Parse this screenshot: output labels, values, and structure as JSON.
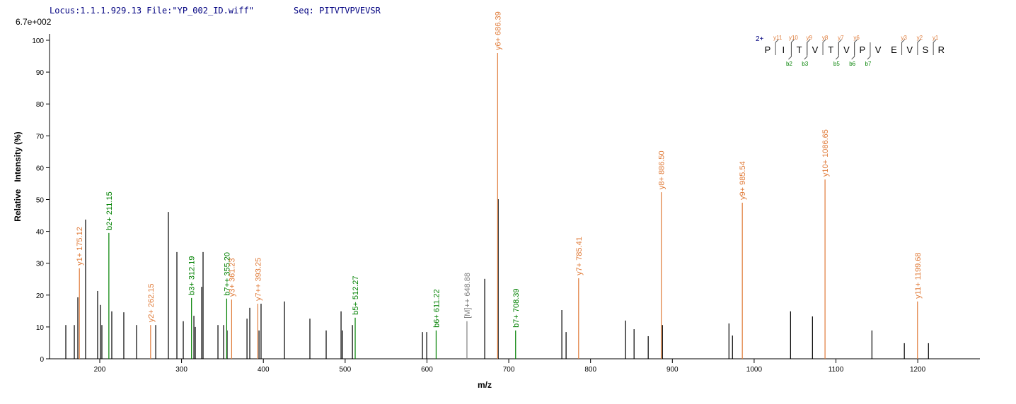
{
  "chart_data": {
    "type": "spectrum",
    "header": [
      "Locus:1.1.1.929.13 File:\"YP_002_ID.wiff\"",
      "Seq: PITVTVPVEVSR"
    ],
    "scale_label": "6.7e+002",
    "x_label": "m/z",
    "y_label": "Relative   Intensity (%)",
    "xlim": [
      138.6,
      1276
    ],
    "ylim": [
      0,
      100
    ],
    "xticks": [
      200,
      300,
      400,
      500,
      600,
      700,
      800,
      900,
      1000,
      1100,
      1200
    ],
    "yticks": [
      0,
      10,
      20,
      30,
      40,
      50,
      60,
      70,
      80,
      90,
      100
    ],
    "x": [
      158.5,
      168.9,
      173.2,
      182.7,
      197.4,
      200.9,
      202.6,
      214.7,
      229.4,
      245.0,
      268.4,
      283.9,
      294.3,
      302.1,
      315.1,
      316.8,
      324.6,
      326.3,
      344.5,
      351.4,
      355.7,
      380.0,
      383.4,
      394.7,
      397.2,
      425.8,
      456.9,
      476.8,
      495.0,
      496.7,
      508.9,
      594.5,
      599.7,
      670.6,
      687.1,
      764.9,
      770.1,
      842.8,
      853.2,
      870.5,
      887.9,
      969.2,
      973.5,
      1044.5,
      1071.3,
      1144.0,
      1183.6,
      1213.1,
      175.12,
      211.15,
      262.15,
      312.19,
      355.2,
      361.23,
      393.25,
      512.27,
      611.22,
      648.88,
      686.39,
      708.39,
      785.41,
      886.5,
      985.54,
      1086.65,
      1199.68
    ],
    "values": [
      10.6,
      10.6,
      19.3,
      43.7,
      21.3,
      16.9,
      10.6,
      14.9,
      14.6,
      10.6,
      10.6,
      46.1,
      33.5,
      11.8,
      13.5,
      10.0,
      22.6,
      33.5,
      10.6,
      10.6,
      8.9,
      12.6,
      16.0,
      8.9,
      17.3,
      18.0,
      12.6,
      8.9,
      14.9,
      8.9,
      10.6,
      8.4,
      8.4,
      25.1,
      50.1,
      15.3,
      8.4,
      12.0,
      9.3,
      7.1,
      10.6,
      11.1,
      7.3,
      14.9,
      13.3,
      8.9,
      4.9,
      4.9,
      28.4,
      39.5,
      10.6,
      19.1,
      18.9,
      18.6,
      17.3,
      12.9,
      8.9,
      11.8,
      96.0,
      8.9,
      25.3,
      52.3,
      49.0,
      56.3,
      18.0
    ],
    "colors": [
      "#000000",
      "#000000",
      "#000000",
      "#000000",
      "#000000",
      "#000000",
      "#000000",
      "#000000",
      "#000000",
      "#000000",
      "#000000",
      "#000000",
      "#000000",
      "#000000",
      "#000000",
      "#000000",
      "#000000",
      "#000000",
      "#000000",
      "#000000",
      "#000000",
      "#000000",
      "#000000",
      "#000000",
      "#000000",
      "#000000",
      "#000000",
      "#000000",
      "#000000",
      "#000000",
      "#000000",
      "#000000",
      "#000000",
      "#000000",
      "#000000",
      "#000000",
      "#000000",
      "#000000",
      "#000000",
      "#000000",
      "#000000",
      "#000000",
      "#000000",
      "#000000",
      "#000000",
      "#000000",
      "#000000",
      "#000000",
      "#e07b39",
      "#008000",
      "#e07b39",
      "#008000",
      "#008000",
      "#e07b39",
      "#e07b39",
      "#008000",
      "#008000",
      "#808080",
      "#e07b39",
      "#008000",
      "#e07b39",
      "#e07b39",
      "#e07b39",
      "#e07b39",
      "#e07b39"
    ],
    "peak_labels": [
      null,
      null,
      null,
      null,
      null,
      null,
      null,
      null,
      null,
      null,
      null,
      null,
      null,
      null,
      null,
      null,
      null,
      null,
      null,
      null,
      null,
      null,
      null,
      null,
      null,
      null,
      null,
      null,
      null,
      null,
      null,
      null,
      null,
      null,
      null,
      null,
      null,
      null,
      null,
      null,
      null,
      null,
      null,
      null,
      null,
      null,
      null,
      null,
      "y1+ 175.12",
      "b2+ 211.15",
      "y2+ 262.15",
      "b3+ 312.19",
      "b7++ 355.20",
      "y3+ 361.23",
      "y7++ 393.25",
      "b5+ 512.27",
      "b6+ 611.22",
      "[M]++ 648.88",
      "y6+ 686.39",
      "b7+ 708.39",
      "y7+ 785.41",
      "y8+ 886.50",
      "y9+ 985.54",
      "y10+ 1086.65",
      "y11+ 1199.68"
    ],
    "sequence_diagram": {
      "charge": "2+",
      "residues": [
        "P",
        "I",
        "T",
        "V",
        "T",
        "V",
        "P",
        "V",
        "E",
        "V",
        "S",
        "R"
      ],
      "y_labels": [
        "y11",
        "y10",
        "y9",
        "y8",
        "y7",
        "y6",
        null,
        null,
        "y3",
        "y2",
        "y1"
      ],
      "b_labels": [
        null,
        "b2",
        "b3",
        null,
        "b5",
        "b6",
        "b7",
        null,
        null,
        null,
        null
      ]
    }
  }
}
